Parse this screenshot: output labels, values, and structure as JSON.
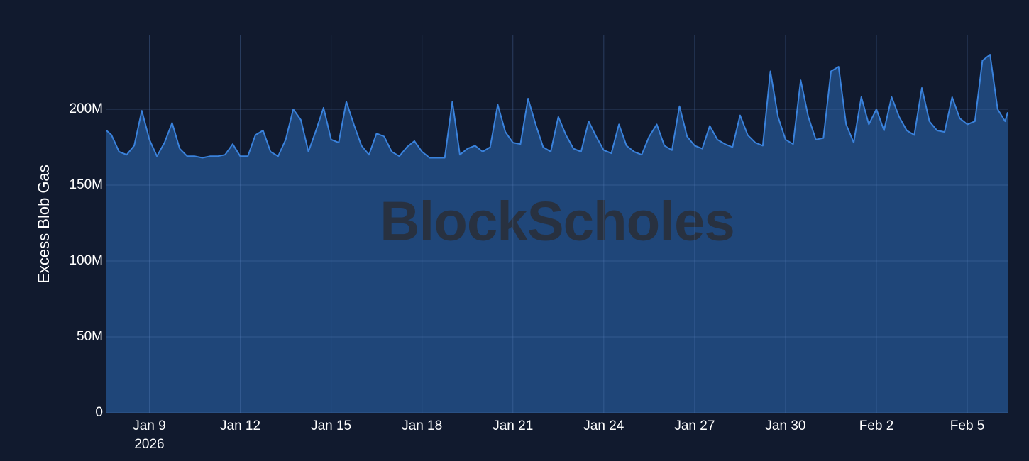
{
  "chart_data": {
    "type": "area",
    "y_axis_label": "Excess Blob Gas",
    "watermark": "BlockScholes",
    "x_year_label": "2026",
    "color": "#3a82dc",
    "fill": "#1f4679",
    "grid": true,
    "xlim": [
      "2026-01-07T14:00",
      "2026-02-06T08:00"
    ],
    "ylim": [
      0,
      248.6
    ],
    "yticks": [
      0,
      {
        "value": 50,
        "label": "50M"
      },
      {
        "value": 100,
        "label": "100M"
      },
      {
        "value": 150,
        "label": "150M"
      },
      {
        "value": 200,
        "label": "200M"
      }
    ],
    "xticks": [
      {
        "value": "2026-01-09T00:00",
        "label": "Jan 9"
      },
      {
        "value": "2026-01-12T00:00",
        "label": "Jan 12"
      },
      {
        "value": "2026-01-15T00:00",
        "label": "Jan 15"
      },
      {
        "value": "2026-01-18T00:00",
        "label": "Jan 18"
      },
      {
        "value": "2026-01-21T00:00",
        "label": "Jan 21"
      },
      {
        "value": "2026-01-24T00:00",
        "label": "Jan 24"
      },
      {
        "value": "2026-01-27T00:00",
        "label": "Jan 27"
      },
      {
        "value": "2026-01-30T00:00",
        "label": "Jan 30"
      },
      {
        "value": "2026-02-02T00:00",
        "label": "Feb 2"
      },
      {
        "value": "2026-02-05T00:00",
        "label": "Feb 5"
      }
    ],
    "x": [
      "2026-01-07T14:00",
      "2026-01-07T18:00",
      "2026-01-08T00:00",
      "2026-01-08T06:00",
      "2026-01-08T12:00",
      "2026-01-08T18:00",
      "2026-01-09T00:00",
      "2026-01-09T06:00",
      "2026-01-09T12:00",
      "2026-01-09T18:00",
      "2026-01-10T00:00",
      "2026-01-10T06:00",
      "2026-01-10T12:00",
      "2026-01-10T18:00",
      "2026-01-11T00:00",
      "2026-01-11T06:00",
      "2026-01-11T12:00",
      "2026-01-11T18:00",
      "2026-01-12T00:00",
      "2026-01-12T06:00",
      "2026-01-12T12:00",
      "2026-01-12T18:00",
      "2026-01-13T00:00",
      "2026-01-13T06:00",
      "2026-01-13T12:00",
      "2026-01-13T18:00",
      "2026-01-14T00:00",
      "2026-01-14T06:00",
      "2026-01-14T12:00",
      "2026-01-14T18:00",
      "2026-01-15T00:00",
      "2026-01-15T06:00",
      "2026-01-15T12:00",
      "2026-01-15T18:00",
      "2026-01-16T00:00",
      "2026-01-16T06:00",
      "2026-01-16T12:00",
      "2026-01-16T18:00",
      "2026-01-17T00:00",
      "2026-01-17T06:00",
      "2026-01-17T12:00",
      "2026-01-17T18:00",
      "2026-01-18T00:00",
      "2026-01-18T06:00",
      "2026-01-18T12:00",
      "2026-01-18T18:00",
      "2026-01-19T00:00",
      "2026-01-19T06:00",
      "2026-01-19T12:00",
      "2026-01-19T18:00",
      "2026-01-20T00:00",
      "2026-01-20T06:00",
      "2026-01-20T12:00",
      "2026-01-20T18:00",
      "2026-01-21T00:00",
      "2026-01-21T06:00",
      "2026-01-21T12:00",
      "2026-01-21T18:00",
      "2026-01-22T00:00",
      "2026-01-22T06:00",
      "2026-01-22T12:00",
      "2026-01-22T18:00",
      "2026-01-23T00:00",
      "2026-01-23T06:00",
      "2026-01-23T12:00",
      "2026-01-23T18:00",
      "2026-01-24T00:00",
      "2026-01-24T06:00",
      "2026-01-24T12:00",
      "2026-01-24T18:00",
      "2026-01-25T00:00",
      "2026-01-25T06:00",
      "2026-01-25T12:00",
      "2026-01-25T18:00",
      "2026-01-26T00:00",
      "2026-01-26T06:00",
      "2026-01-26T12:00",
      "2026-01-26T18:00",
      "2026-01-27T00:00",
      "2026-01-27T06:00",
      "2026-01-27T12:00",
      "2026-01-27T18:00",
      "2026-01-28T00:00",
      "2026-01-28T06:00",
      "2026-01-28T12:00",
      "2026-01-28T18:00",
      "2026-01-29T00:00",
      "2026-01-29T06:00",
      "2026-01-29T12:00",
      "2026-01-29T18:00",
      "2026-01-30T00:00",
      "2026-01-30T06:00",
      "2026-01-30T12:00",
      "2026-01-30T18:00",
      "2026-01-31T00:00",
      "2026-01-31T06:00",
      "2026-01-31T12:00",
      "2026-01-31T18:00",
      "2026-02-01T00:00",
      "2026-02-01T06:00",
      "2026-02-01T12:00",
      "2026-02-01T18:00",
      "2026-02-02T00:00",
      "2026-02-02T06:00",
      "2026-02-02T12:00",
      "2026-02-02T18:00",
      "2026-02-03T00:00",
      "2026-02-03T06:00",
      "2026-02-03T12:00",
      "2026-02-03T18:00",
      "2026-02-04T00:00",
      "2026-02-04T06:00",
      "2026-02-04T12:00",
      "2026-02-04T18:00",
      "2026-02-05T00:00",
      "2026-02-05T06:00",
      "2026-02-05T12:00",
      "2026-02-05T18:00",
      "2026-02-06T00:00",
      "2026-02-06T06:00",
      "2026-02-06T08:00"
    ],
    "values": [
      186,
      183,
      172,
      170,
      176,
      199,
      180,
      169,
      178,
      191,
      174,
      169,
      169,
      168,
      169,
      169,
      170,
      177,
      169,
      169,
      183,
      186,
      172,
      169,
      180,
      200,
      193,
      172,
      186,
      201,
      180,
      178,
      205,
      190,
      176,
      170,
      184,
      182,
      172,
      169,
      175,
      179,
      172,
      168,
      168,
      168,
      205,
      170,
      174,
      176,
      172,
      175,
      203,
      185,
      178,
      177,
      207,
      190,
      175,
      172,
      195,
      183,
      174,
      172,
      192,
      182,
      173,
      171,
      190,
      176,
      172,
      170,
      182,
      190,
      176,
      173,
      202,
      182,
      176,
      174,
      189,
      180,
      177,
      175,
      196,
      183,
      178,
      176,
      225,
      195,
      180,
      177,
      219,
      195,
      180,
      181,
      225,
      228,
      190,
      178,
      208,
      190,
      200,
      186,
      208,
      195,
      186,
      183,
      214,
      192,
      186,
      185,
      208,
      194,
      190,
      192,
      232,
      236,
      200,
      192,
      198
    ]
  }
}
